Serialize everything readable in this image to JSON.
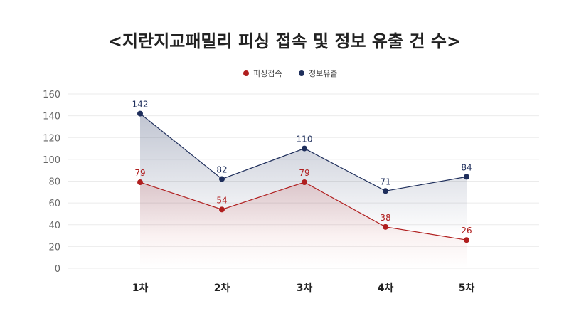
{
  "chart_data": {
    "type": "line",
    "title": "<지란지교패밀리 피싱 접속 및 정보 유출 건 수>",
    "categories": [
      "1차",
      "2차",
      "3차",
      "4차",
      "5차"
    ],
    "series": [
      {
        "name": "피싱접속",
        "color": "#b01e1e",
        "values": [
          79,
          54,
          79,
          38,
          26
        ]
      },
      {
        "name": "정보유출",
        "color": "#1f2f5c",
        "values": [
          142,
          82,
          110,
          71,
          84
        ]
      }
    ],
    "ylim": [
      0,
      160
    ],
    "yticks": [
      0,
      20,
      40,
      60,
      80,
      100,
      120,
      140,
      160
    ],
    "grid": true,
    "legend": "top-center"
  }
}
